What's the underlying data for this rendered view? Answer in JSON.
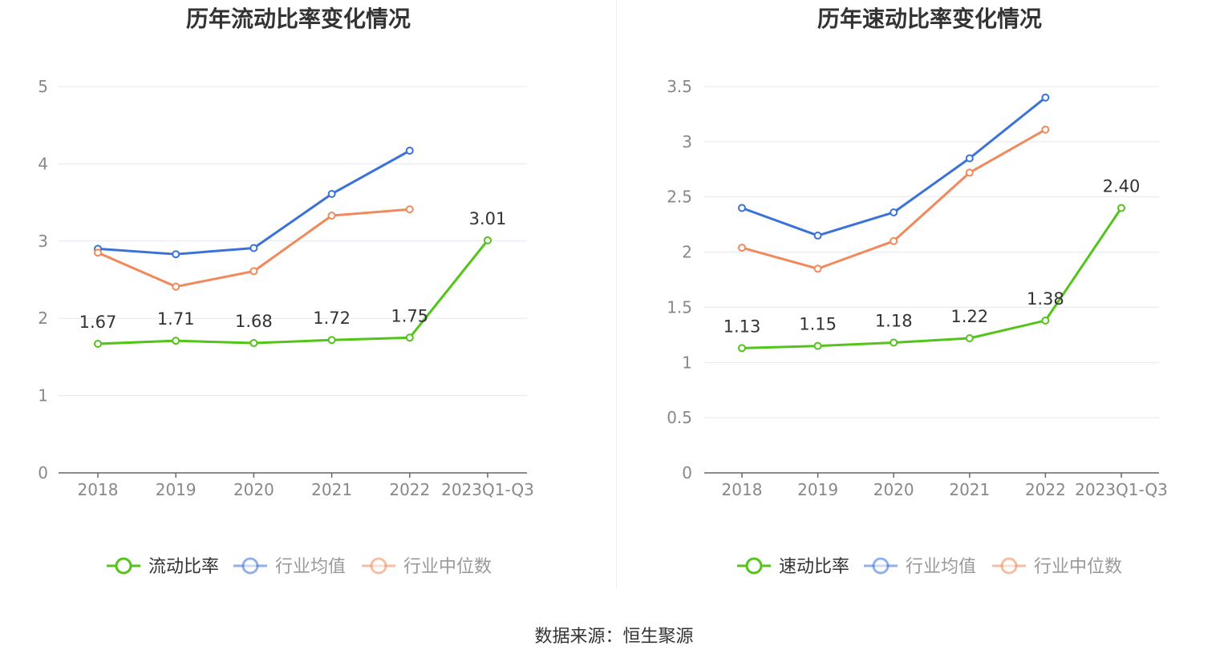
{
  "colors": {
    "company": "#52c41a",
    "industry_avg": "#3a72d9",
    "industry_median": "#f08a5d",
    "grid": "#e4e7ef",
    "axis": "#666666",
    "tick_text": "#888888",
    "title_text": "#333333"
  },
  "chart_data": [
    {
      "type": "line",
      "title": "历年流动比率变化情况",
      "categories": [
        "2018",
        "2019",
        "2020",
        "2021",
        "2022",
        "2023Q1-Q3"
      ],
      "ylim": [
        0,
        5
      ],
      "yticks": [
        "0",
        "1",
        "2",
        "3",
        "4",
        "5"
      ],
      "grid": true,
      "legend_position": "bottom-center",
      "series": [
        {
          "name": "流动比率",
          "values": [
            1.67,
            1.71,
            1.68,
            1.72,
            1.75,
            3.01
          ],
          "labels": [
            "1.67",
            "1.71",
            "1.68",
            "1.72",
            "1.75",
            "3.01"
          ]
        },
        {
          "name": "行业均值",
          "values": [
            2.9,
            2.83,
            2.91,
            3.61,
            4.17,
            null
          ]
        },
        {
          "name": "行业中位数",
          "values": [
            2.85,
            2.41,
            2.61,
            3.33,
            3.41,
            null
          ]
        }
      ]
    },
    {
      "type": "line",
      "title": "历年速动比率变化情况",
      "categories": [
        "2018",
        "2019",
        "2020",
        "2021",
        "2022",
        "2023Q1-Q3"
      ],
      "ylim": [
        0,
        3.5
      ],
      "yticks": [
        "0",
        "0.5",
        "1",
        "1.5",
        "2",
        "2.5",
        "3",
        "3.5"
      ],
      "grid": true,
      "legend_position": "bottom-center",
      "series": [
        {
          "name": "速动比率",
          "values": [
            1.13,
            1.15,
            1.18,
            1.22,
            1.38,
            2.4
          ],
          "labels": [
            "1.13",
            "1.15",
            "1.18",
            "1.22",
            "1.38",
            "2.40"
          ]
        },
        {
          "name": "行业均值",
          "values": [
            2.4,
            2.15,
            2.36,
            2.85,
            3.4,
            null
          ]
        },
        {
          "name": "行业中位数",
          "values": [
            2.04,
            1.85,
            2.1,
            2.72,
            3.11,
            null
          ]
        }
      ]
    }
  ],
  "footer": {
    "source": "数据来源：恒生聚源"
  }
}
